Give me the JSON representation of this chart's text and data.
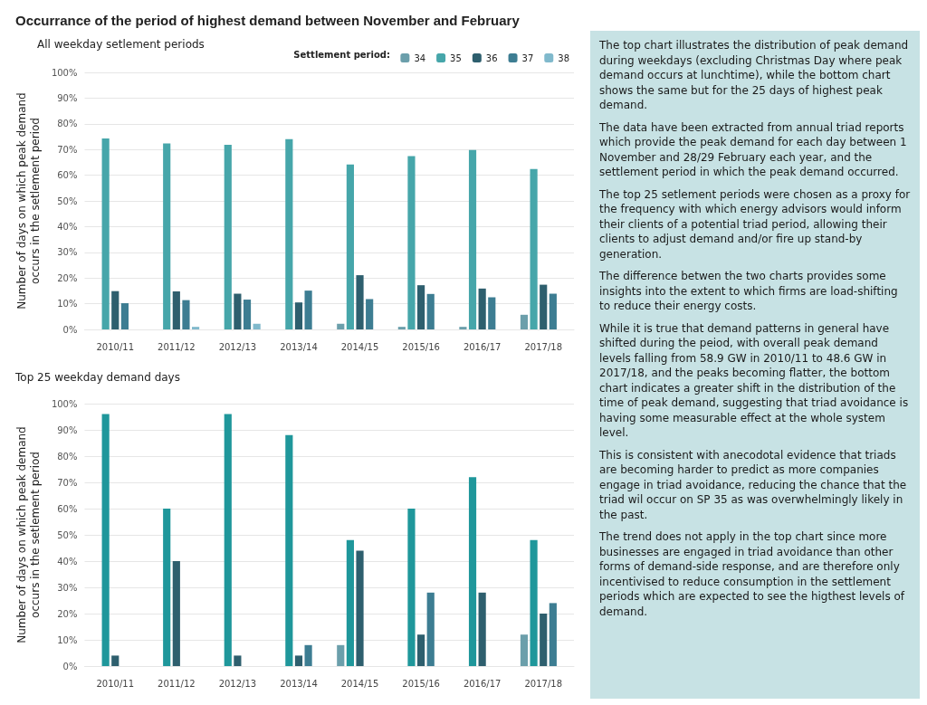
{
  "chart_data": [
    {
      "type": "bar",
      "title": "Occurrance of the period of highest demand between November and February",
      "subtitle": "All weekday setlement periods",
      "ylabel": "Number of days on which peak demand occurs in the setlement period",
      "legend_title": "Settlement period:",
      "legend": "top right",
      "grid": "y",
      "categories": [
        "2010/11",
        "2011/12",
        "2012/13",
        "2013/14",
        "2014/15",
        "2015/16",
        "2016/17",
        "2017/18"
      ],
      "series": [
        {
          "name": "34",
          "color": "#6b9fab",
          "values": [
            null,
            null,
            null,
            null,
            2.2,
            1.0,
            1.0,
            5.7
          ]
        },
        {
          "name": "35",
          "color": "#46a6aa",
          "values": [
            74.3,
            72.4,
            71.8,
            74.0,
            64.2,
            67.4,
            69.8,
            62.4
          ]
        },
        {
          "name": "36",
          "color": "#2e5f6e",
          "values": [
            14.9,
            14.8,
            13.9,
            10.5,
            21.1,
            17.2,
            15.9,
            17.4
          ]
        },
        {
          "name": "37",
          "color": "#3d7d92",
          "values": [
            10.2,
            11.4,
            11.6,
            15.1,
            11.8,
            13.8,
            12.5,
            13.9
          ]
        },
        {
          "name": "38",
          "color": "#80b9cc",
          "values": [
            null,
            1.0,
            2.2,
            null,
            null,
            null,
            null,
            null
          ]
        }
      ],
      "ylim": [
        0,
        100
      ],
      "yticks": [
        {
          "value": 0,
          "label": "0%"
        },
        {
          "value": 10,
          "label": "10%"
        },
        {
          "value": 20,
          "label": "20%"
        },
        {
          "value": 30,
          "label": "30%"
        },
        {
          "value": 40,
          "label": "40%"
        },
        {
          "value": 50,
          "label": "50%"
        },
        {
          "value": 60,
          "label": "60%"
        },
        {
          "value": 70,
          "label": "70%"
        },
        {
          "value": 80,
          "label": "80%"
        },
        {
          "value": 90,
          "label": "90%"
        },
        {
          "value": 100,
          "label": "100%"
        }
      ]
    },
    {
      "type": "bar",
      "title": "Top 25 weekday demand days",
      "ylabel": "Number of days on which peak demand occurs in the setlement period",
      "grid": "y",
      "categories": [
        "2010/11",
        "2011/12",
        "2012/13",
        "2013/14",
        "2014/15",
        "2015/16",
        "2016/17",
        "2017/18"
      ],
      "series": [
        {
          "color": "#6b9fab",
          "values": [
            null,
            null,
            null,
            null,
            8,
            null,
            null,
            12
          ]
        },
        {
          "color": "#1f979b",
          "values": [
            96,
            60,
            96,
            88,
            48,
            60,
            72,
            48
          ]
        },
        {
          "color": "#2e5f6e",
          "values": [
            4,
            40,
            4,
            4,
            44,
            12,
            28,
            20
          ]
        },
        {
          "color": "#3d7d92",
          "values": [
            null,
            null,
            null,
            8,
            null,
            28,
            null,
            24
          ]
        },
        {
          "color": "#80b9cc",
          "values": [
            null,
            null,
            null,
            null,
            null,
            null,
            null,
            null
          ]
        }
      ],
      "ylim": [
        0,
        100
      ],
      "yticks": [
        {
          "value": 0,
          "label": "0%"
        },
        {
          "value": 10,
          "label": "10%"
        },
        {
          "value": 20,
          "label": "20%"
        },
        {
          "value": 30,
          "label": "30%"
        },
        {
          "value": 40,
          "label": "40%"
        },
        {
          "value": 50,
          "label": "50%"
        },
        {
          "value": 60,
          "label": "60%"
        },
        {
          "value": 70,
          "label": "70%"
        },
        {
          "value": 80,
          "label": "80%"
        },
        {
          "value": 90,
          "label": "90%"
        },
        {
          "value": 100,
          "label": "100%"
        }
      ]
    },
    {
      "type": "other",
      "annotations": [
        "The top chart illustrates the distribution of peak demand during weekdays (excluding Christmas Day where peak demand occurs at lunchtime), while the bottom chart shows the same but for the 25 days of highest peak demand.",
        "The data have been extracted from annual triad reports which provide the peak demand for each day between 1 November and 28/29 February each year, and the settlement period in which the peak demand occurred.",
        "The top 25 setlement periods were chosen as a proxy for the frequency with which energy advisors would inform their clients of a potential triad period, allowing their clients to adjust demand and/or fire up stand-by generation.",
        "The difference betwen the two charts provides some insights into the extent to which firms are load-shifting to reduce their energy costs.",
        "While it is true that demand patterns in general have shifted during the peiod, with overall peak demand levels falling from 58.9 GW in 2010/11 to 48.6 GW in 2017/18, and the peaks becoming flatter, the bottom chart indicates a greater shift in the distribution of the time of peak demand, suggesting that triad avoidance is having some measurable effect at the whole system level.",
        "This is consistent with anecodotal evidence that triads are becoming harder to predict as more companies engage in triad avoidance, reducing the chance that the triad wil occur on SP 35 as was overwhelmingly likely in the past.",
        "The trend does not apply in the top chart since more businesses are engaged in triad avoidance than other forms of demand-side response, and are therefore only incentivised to reduce consumption in the settlement periods which are expected to see the higthest levels of demand."
      ]
    }
  ]
}
